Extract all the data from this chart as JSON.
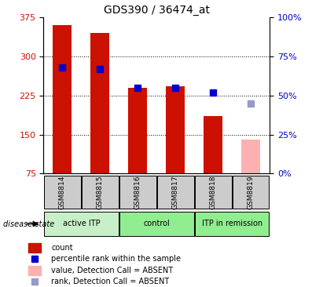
{
  "title": "GDS390 / 36474_at",
  "samples": [
    "GSM8814",
    "GSM8815",
    "GSM8816",
    "GSM8817",
    "GSM8818",
    "GSM8819"
  ],
  "count_values": [
    360,
    345,
    240,
    242,
    185,
    null
  ],
  "count_absent": [
    null,
    null,
    null,
    null,
    null,
    140
  ],
  "rank_values": [
    68,
    67,
    55,
    55,
    52,
    null
  ],
  "rank_absent": [
    null,
    null,
    null,
    null,
    null,
    45
  ],
  "ylim_left": [
    75,
    375
  ],
  "ylim_right": [
    0,
    100
  ],
  "yticks_left": [
    75,
    150,
    225,
    300,
    375
  ],
  "yticks_right": [
    0,
    25,
    50,
    75,
    100
  ],
  "ytick_right_labels": [
    "0%",
    "25%",
    "50%",
    "75%",
    "100%"
  ],
  "bar_color_red": "#cc1100",
  "bar_color_pink": "#ffb0b0",
  "marker_color_blue": "#0000cc",
  "marker_color_lightblue": "#9999cc",
  "bar_width": 0.5,
  "marker_size": 6,
  "sample_box_color": "#cccccc",
  "group_info": [
    {
      "label": "active ITP",
      "start": 0,
      "end": 1,
      "color": "#c8f0c8"
    },
    {
      "label": "control",
      "start": 2,
      "end": 3,
      "color": "#90ee90"
    },
    {
      "label": "ITP in remission",
      "start": 4,
      "end": 5,
      "color": "#90ee90"
    }
  ],
  "legend_items": [
    {
      "color": "#cc1100",
      "label": "count",
      "type": "rect"
    },
    {
      "color": "#0000cc",
      "label": "percentile rank within the sample",
      "type": "square"
    },
    {
      "color": "#ffb0b0",
      "label": "value, Detection Call = ABSENT",
      "type": "rect"
    },
    {
      "color": "#9999cc",
      "label": "rank, Detection Call = ABSENT",
      "type": "square"
    }
  ]
}
